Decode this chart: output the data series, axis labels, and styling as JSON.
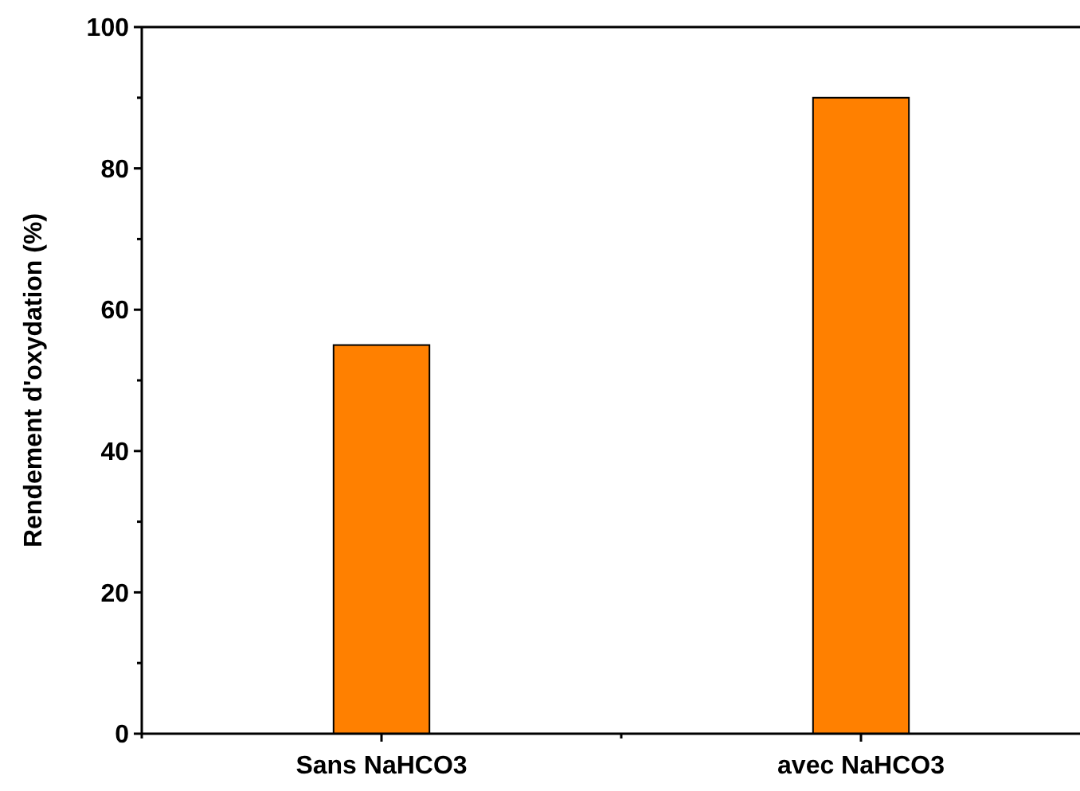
{
  "chart_data": {
    "type": "bar",
    "ylabel": "Rendement d'oxydation (%)",
    "categories": [
      "Sans NaHCO3",
      "avec NaHCO3"
    ],
    "values": [
      55,
      90
    ],
    "color": "#ff8000",
    "ylim": [
      0,
      100
    ],
    "yticks": [
      0,
      {
        "value": 10,
        "label": null
      },
      20,
      {
        "value": 30,
        "label": null
      },
      40,
      {
        "value": 50,
        "label": null
      },
      60,
      {
        "value": 70,
        "label": null
      },
      80,
      {
        "value": 90,
        "label": null
      },
      100
    ],
    "grid": false
  }
}
